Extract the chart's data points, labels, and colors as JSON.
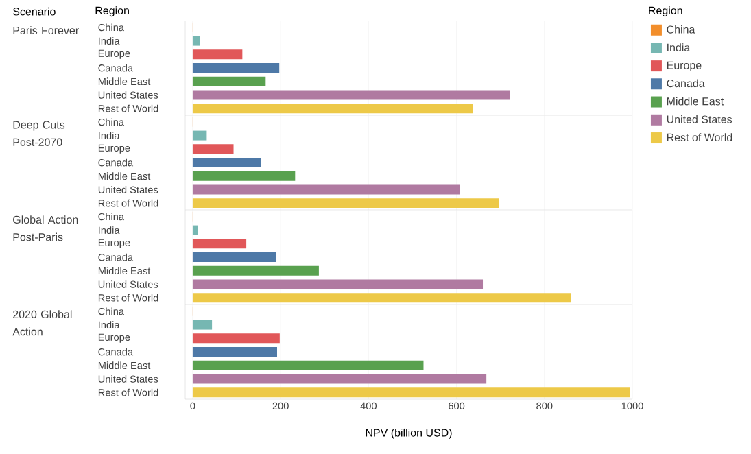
{
  "chart_data": [
    {
      "type": "bar",
      "orientation": "horizontal",
      "title": "Paris Forever",
      "annotations": [
        "Scenario",
        "Region"
      ],
      "legend_title": "Region",
      "legend": "right",
      "categories": [
        "China",
        "India",
        "Europe",
        "Canada",
        "Middle East",
        "United States",
        "Rest of World"
      ],
      "series": [
        {
          "name": "China",
          "color": "#f28e2b",
          "values": [
            1,
            null,
            null,
            null,
            null,
            null,
            null
          ]
        },
        {
          "name": "India",
          "color": "#76b7b2",
          "values": [
            null,
            17,
            null,
            null,
            null,
            null,
            null
          ]
        },
        {
          "name": "Europe",
          "color": "#e15759",
          "values": [
            null,
            null,
            113,
            null,
            null,
            null,
            null
          ]
        },
        {
          "name": "Canada",
          "color": "#4e79a7",
          "values": [
            null,
            null,
            null,
            197,
            null,
            null,
            null
          ]
        },
        {
          "name": "Middle East",
          "color": "#59a14f",
          "values": [
            null,
            null,
            null,
            null,
            166,
            null,
            null
          ]
        },
        {
          "name": "United States",
          "color": "#b07aa1",
          "values": [
            null,
            null,
            null,
            null,
            null,
            722,
            null
          ]
        },
        {
          "name": "Rest of World",
          "color": "#edc948",
          "values": [
            null,
            null,
            null,
            null,
            null,
            null,
            638
          ]
        }
      ],
      "xlim": [
        -17,
        1000
      ],
      "xticks": [
        0,
        200,
        400,
        600,
        800,
        1000
      ],
      "grid": "x",
      "tick_labels": "y"
    },
    {
      "type": "bar",
      "orientation": "horizontal",
      "title": "Deep Cuts Post-2070",
      "categories": [
        "China",
        "India",
        "Europe",
        "Canada",
        "Middle East",
        "United States",
        "Rest of World"
      ],
      "values": [
        1,
        32,
        93,
        156,
        233,
        607,
        696
      ],
      "colors": [
        "#f28e2b",
        "#76b7b2",
        "#e15759",
        "#4e79a7",
        "#59a14f",
        "#b07aa1",
        "#edc948"
      ],
      "xlim": [
        -17,
        1000
      ],
      "xticks": [
        0,
        200,
        400,
        600,
        800,
        1000
      ],
      "grid": "x",
      "tick_labels": "y"
    },
    {
      "type": "bar",
      "orientation": "horizontal",
      "title": "Global Action Post-Paris",
      "categories": [
        "China",
        "India",
        "Europe",
        "Canada",
        "Middle East",
        "United States",
        "Rest of World"
      ],
      "values": [
        1,
        12,
        122,
        190,
        287,
        660,
        861
      ],
      "colors": [
        "#f28e2b",
        "#76b7b2",
        "#e15759",
        "#4e79a7",
        "#59a14f",
        "#b07aa1",
        "#edc948"
      ],
      "xlim": [
        -17,
        1000
      ],
      "xticks": [
        0,
        200,
        400,
        600,
        800,
        1000
      ],
      "grid": "x",
      "tick_labels": "y"
    },
    {
      "type": "bar",
      "orientation": "horizontal",
      "title": "2020 Global Action",
      "xlabel": "NPV (billion USD)",
      "categories": [
        "China",
        "India",
        "Europe",
        "Canada",
        "Middle East",
        "United States",
        "Rest of World"
      ],
      "values": [
        1,
        44,
        198,
        192,
        525,
        668,
        995
      ],
      "colors": [
        "#f28e2b",
        "#76b7b2",
        "#e15759",
        "#4e79a7",
        "#59a14f",
        "#b07aa1",
        "#edc948"
      ],
      "xlim": [
        -17,
        1000
      ],
      "xticks": [
        0,
        200,
        400,
        600,
        800,
        1000
      ],
      "grid": "x"
    }
  ]
}
